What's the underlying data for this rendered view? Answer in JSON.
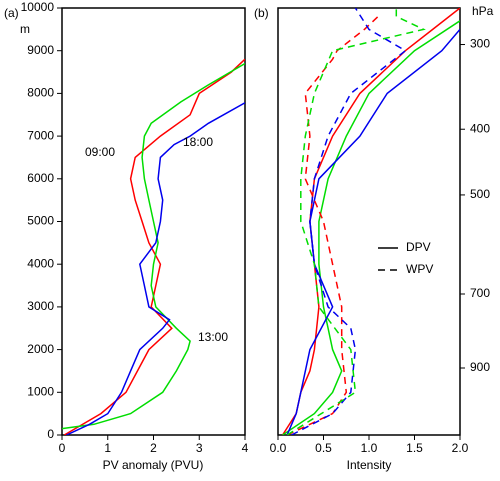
{
  "chart_data": [
    {
      "type": "line",
      "panel_label": "(a)",
      "xlabel": "PV anomaly (PVU)",
      "ylabel": "m",
      "xlim": [
        0,
        4
      ],
      "xticks": [
        0,
        1,
        2,
        3,
        4
      ],
      "ylim": [
        0,
        10000
      ],
      "yticks": [
        0,
        1000,
        2000,
        3000,
        4000,
        5000,
        6000,
        7000,
        8000,
        9000,
        10000
      ],
      "series": [
        {
          "name": "09:00",
          "color": "#ff0000",
          "y": [
            0,
            500,
            1000,
            1500,
            2000,
            2500,
            3000,
            3500,
            4000,
            4500,
            5000,
            5500,
            6000,
            6500,
            7000,
            7500,
            8000,
            8500,
            8800
          ],
          "values": [
            0.05,
            0.85,
            1.4,
            1.65,
            1.9,
            2.4,
            1.95,
            2.05,
            2.15,
            1.9,
            1.75,
            1.6,
            1.5,
            1.6,
            2.15,
            2.8,
            3.0,
            3.7,
            4.0
          ]
        },
        {
          "name": "13:00",
          "color": "#00dd00",
          "y": [
            150,
            250,
            500,
            1000,
            1500,
            2000,
            2200,
            2500,
            3000,
            3500,
            4000,
            4500,
            5000,
            5500,
            6000,
            6500,
            7000,
            7300,
            7800,
            8200,
            8700
          ],
          "values": [
            0.0,
            0.7,
            1.5,
            2.2,
            2.5,
            2.75,
            2.8,
            2.5,
            2.05,
            1.95,
            2.0,
            2.1,
            2.0,
            1.9,
            1.8,
            1.75,
            1.8,
            1.95,
            2.6,
            3.2,
            4.0
          ]
        },
        {
          "name": "18:00",
          "color": "#0000ee",
          "y": [
            0,
            250,
            500,
            1000,
            1500,
            2000,
            2500,
            2700,
            3000,
            3500,
            4000,
            4500,
            5000,
            5500,
            6000,
            6500,
            6800,
            7000,
            7300,
            7780
          ],
          "values": [
            0.1,
            0.6,
            1.0,
            1.3,
            1.5,
            1.7,
            2.2,
            2.35,
            1.9,
            1.8,
            1.7,
            2.05,
            2.15,
            2.2,
            2.1,
            2.15,
            2.45,
            2.8,
            3.2,
            4.0
          ]
        }
      ]
    },
    {
      "type": "line",
      "panel_label": "(b)",
      "xlabel": "Intensity",
      "y2label": "hPa",
      "xlim": [
        0,
        2
      ],
      "xticks": [
        {
          "value": 0,
          "label": "0.0"
        },
        0.5,
        {
          "value": 1,
          "label": "1.0"
        },
        1.5,
        {
          "value": 2,
          "label": "2.0"
        }
      ],
      "ylim": [
        0,
        10000
      ],
      "y2lim": [
        1130,
        265
      ],
      "y2scale": "log",
      "y2ticks": [
        300,
        400,
        500,
        700,
        900
      ],
      "legend_position": "right",
      "legend": [
        {
          "label": "DPV",
          "dash": "solid"
        },
        {
          "label": "WPV",
          "dash": "dashed"
        }
      ],
      "series": [
        {
          "color": "#ff0000",
          "dash": "solid",
          "y": [
            0,
            500,
            1000,
            1500,
            2000,
            3000,
            4000,
            5000,
            6000,
            7000,
            8000,
            9000,
            9500,
            10000
          ],
          "values": [
            0.05,
            0.2,
            0.25,
            0.35,
            0.4,
            0.45,
            0.4,
            0.35,
            0.4,
            0.6,
            0.9,
            1.4,
            1.7,
            2.0
          ]
        },
        {
          "color": "#00dd00",
          "dash": "solid",
          "y": [
            0,
            500,
            1000,
            1500,
            2000,
            2500,
            3000,
            4000,
            5000,
            6000,
            7000,
            8000,
            9000,
            9700
          ],
          "values": [
            0.05,
            0.4,
            0.6,
            0.7,
            0.6,
            0.55,
            0.5,
            0.45,
            0.45,
            0.55,
            0.75,
            1.0,
            1.5,
            2.0
          ]
        },
        {
          "color": "#0000ee",
          "dash": "solid",
          "y": [
            0,
            500,
            1000,
            2000,
            3000,
            4000,
            5000,
            6000,
            7000,
            8000,
            9000,
            9500
          ],
          "values": [
            0.1,
            0.2,
            0.25,
            0.35,
            0.6,
            0.4,
            0.35,
            0.45,
            0.9,
            1.2,
            1.8,
            2.0
          ]
        },
        {
          "color": "#ff0000",
          "dash": "dashed",
          "y": [
            0,
            500,
            1000,
            2000,
            3000,
            4000,
            5000,
            6000,
            7000,
            8000,
            8800,
            9000,
            9500,
            9800
          ],
          "values": [
            0.1,
            0.6,
            0.75,
            0.7,
            0.7,
            0.6,
            0.5,
            0.3,
            0.35,
            0.3,
            0.6,
            0.65,
            0.95,
            1.1
          ]
        },
        {
          "color": "#0000ee",
          "dash": "dashed",
          "y": [
            0,
            500,
            1000,
            2000,
            2500,
            3000,
            4000,
            5000,
            6000,
            7000,
            8000,
            9000,
            9500,
            10000
          ],
          "values": [
            0.15,
            0.6,
            0.8,
            0.85,
            0.8,
            0.55,
            0.4,
            0.35,
            0.4,
            0.55,
            0.8,
            1.4,
            1.0,
            0.85
          ]
        },
        {
          "color": "#00dd00",
          "dash": "dashed",
          "y": [
            0,
            1000,
            2000,
            3000,
            4000,
            5000,
            6000,
            7000,
            8000,
            9000,
            9500,
            9800,
            10000
          ],
          "values": [
            0.1,
            0.85,
            0.8,
            0.45,
            0.4,
            0.25,
            0.25,
            0.3,
            0.4,
            0.6,
            1.6,
            1.3,
            1.3
          ]
        }
      ]
    }
  ]
}
